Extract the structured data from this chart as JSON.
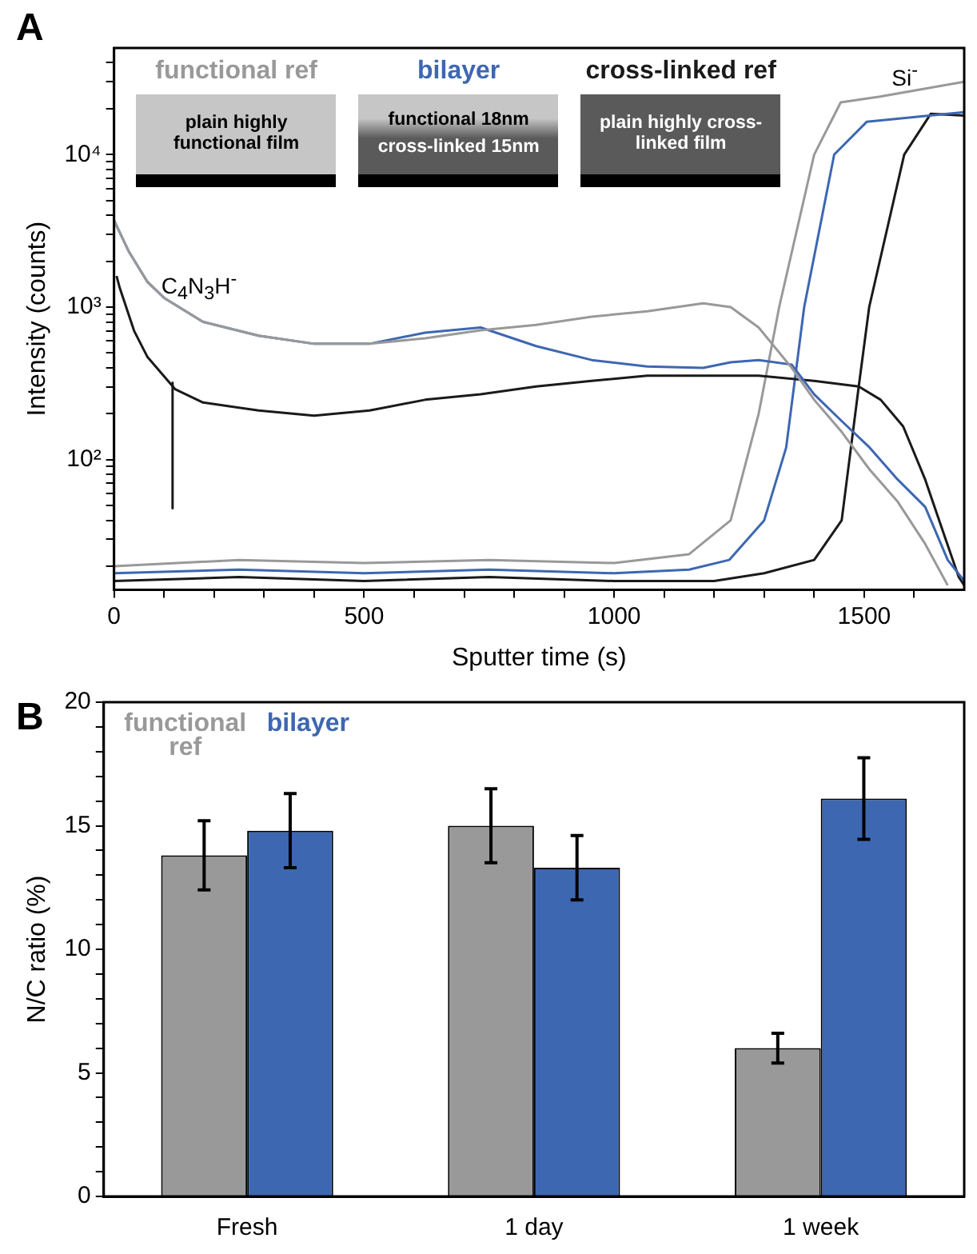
{
  "chart_data": [
    {
      "type": "line",
      "title": "A",
      "xlabel": "Sputter time (s)",
      "ylabel": "Intensity (counts)",
      "log": "y",
      "marker": "none",
      "legend": "top",
      "xlim": [
        0,
        1700
      ],
      "ylim": [
        14,
        50000
      ],
      "xticks": [
        0,
        {
          "value": 100,
          "label": null
        },
        {
          "value": 200,
          "label": null
        },
        {
          "value": 300,
          "label": null
        },
        {
          "value": 400,
          "label": null
        },
        500,
        {
          "value": 600,
          "label": null
        },
        {
          "value": 700,
          "label": null
        },
        {
          "value": 800,
          "label": null
        },
        {
          "value": 900,
          "label": null
        },
        1000,
        {
          "value": 1100,
          "label": null
        },
        {
          "value": 1200,
          "label": null
        },
        {
          "value": 1300,
          "label": null
        },
        {
          "value": 1400,
          "label": null
        },
        1500,
        {
          "value": 1600,
          "label": null
        }
      ],
      "yticks": [
        {
          "value": 20,
          "label": null
        },
        {
          "value": 30,
          "label": null
        },
        {
          "value": 40,
          "label": null
        },
        {
          "value": 50,
          "label": null
        },
        {
          "value": 60,
          "label": null
        },
        {
          "value": 70,
          "label": null
        },
        {
          "value": 80,
          "label": null
        },
        {
          "value": 90,
          "label": null
        },
        {
          "value": 100,
          "label": "10²"
        },
        {
          "value": 200,
          "label": null
        },
        {
          "value": 300,
          "label": null
        },
        {
          "value": 400,
          "label": null
        },
        {
          "value": 500,
          "label": null
        },
        {
          "value": 600,
          "label": null
        },
        {
          "value": 700,
          "label": null
        },
        {
          "value": 800,
          "label": null
        },
        {
          "value": 900,
          "label": null
        },
        {
          "value": 1000,
          "label": "10³"
        },
        {
          "value": 2000,
          "label": null
        },
        {
          "value": 3000,
          "label": null
        },
        {
          "value": 4000,
          "label": null
        },
        {
          "value": 5000,
          "label": null
        },
        {
          "value": 6000,
          "label": null
        },
        {
          "value": 7000,
          "label": null
        },
        {
          "value": 8000,
          "label": null
        },
        {
          "value": 9000,
          "label": null
        },
        {
          "value": 10000,
          "label": "10⁴"
        },
        {
          "value": 20000,
          "label": null
        },
        {
          "value": 30000,
          "label": null
        },
        {
          "value": 40000,
          "label": null
        }
      ],
      "annotations": [
        "C$_{4}$N$_{3}$H$^{-}$",
        "Si$^{-}$",
        "plain highly functional film",
        "functional 18nm",
        "cross-linked 15nm",
        "plain highly cross-linked film"
      ],
      "series": [
        {
          "name": "functional ref",
          "color": "#999999",
          "x": [
            0,
            30,
            67,
            100,
            178,
            289,
            400,
            511,
            622,
            733,
            844,
            955,
            1066,
            1178,
            1233,
            1289,
            1355,
            1400,
            1455,
            1511,
            1567,
            1622,
            1667
          ],
          "values": [
            3700,
            2300,
            1460,
            1150,
            800,
            650,
            575,
            575,
            625,
            705,
            765,
            865,
            940,
            1060,
            1000,
            735,
            400,
            247,
            152,
            86,
            53,
            28,
            15
          ]
        },
        {
          "name": "bilayer",
          "color": "#3d67b1",
          "x": [
            0,
            30,
            67,
            100,
            178,
            289,
            400,
            511,
            622,
            733,
            844,
            955,
            1066,
            1178,
            1233,
            1289,
            1355,
            1400,
            1455,
            1511,
            1567,
            1622,
            1667,
            1700
          ],
          "values": [
            3700,
            2300,
            1460,
            1150,
            800,
            650,
            575,
            575,
            680,
            735,
            555,
            450,
            408,
            400,
            435,
            450,
            420,
            268,
            179,
            120,
            74,
            49,
            22,
            16
          ]
        },
        {
          "name": "cross-linked ref",
          "color": "#1a1a1a",
          "x": [
            5,
            11,
            40,
            67,
            122,
            178,
            289,
            400,
            511,
            622,
            733,
            844,
            955,
            1066,
            1178,
            1289,
            1400,
            1489,
            1533,
            1578,
            1622,
            1656,
            1689,
            1700
          ],
          "values": [
            1600,
            1350,
            700,
            470,
            290,
            237,
            210,
            194,
            210,
            247,
            268,
            302,
            328,
            355,
            355,
            355,
            328,
            302,
            247,
            165,
            74,
            35,
            17,
            15
          ]
        },
        {
          "color": "#999999",
          "x": [
            0,
            250,
            500,
            750,
            1000,
            1150,
            1233,
            1289,
            1330,
            1400,
            1453,
            1532,
            1700
          ],
          "values": [
            20,
            22,
            21,
            22,
            21,
            24,
            40,
            200,
            1000,
            10000,
            22000,
            24000,
            30000
          ]
        },
        {
          "color": "#3d67b1",
          "x": [
            0,
            250,
            500,
            750,
            1000,
            1150,
            1230,
            1300,
            1344,
            1380,
            1440,
            1505,
            1700
          ],
          "values": [
            18,
            19,
            18,
            19,
            18,
            19,
            22,
            40,
            120,
            1000,
            10000,
            16400,
            19000
          ]
        },
        {
          "color": "#1a1a1a",
          "x": [
            0,
            250,
            500,
            750,
            1000,
            1200,
            1300,
            1400,
            1455,
            1489,
            1510,
            1580,
            1633,
            1700
          ],
          "values": [
            16,
            17,
            16,
            17,
            16,
            16,
            18,
            22,
            40,
            300,
            1000,
            10000,
            18500,
            18000
          ]
        },
        {
          "color": "#1a1a1a",
          "x": [
            117,
            117
          ],
          "values": [
            320,
            48
          ]
        }
      ]
    },
    {
      "type": "bar",
      "title": "B",
      "ylabel": "N/C ratio (%)",
      "legend": "top left",
      "categories": [
        "Fresh",
        "1 day",
        "1 week"
      ],
      "ylim": [
        0,
        20
      ],
      "yticks": [
        0,
        {
          "value": 1,
          "label": null
        },
        {
          "value": 2,
          "label": null
        },
        {
          "value": 3,
          "label": null
        },
        {
          "value": 4,
          "label": null
        },
        5,
        {
          "value": 6,
          "label": null
        },
        {
          "value": 7,
          "label": null
        },
        {
          "value": 8,
          "label": null
        },
        {
          "value": 9,
          "label": null
        },
        10,
        {
          "value": 11,
          "label": null
        },
        {
          "value": 12,
          "label": null
        },
        {
          "value": 13,
          "label": null
        },
        {
          "value": 14,
          "label": null
        },
        15,
        {
          "value": 16,
          "label": null
        },
        {
          "value": 17,
          "label": null
        },
        {
          "value": 18,
          "label": null
        },
        {
          "value": 19,
          "label": null
        },
        20
      ],
      "series": [
        {
          "name": "functional ref",
          "color": "#999999",
          "values": [
            13.8,
            15.0,
            6.0
          ],
          "errors": [
            1.4,
            1.5,
            0.6
          ]
        },
        {
          "name": "bilayer",
          "color": "#3d67b1",
          "values": [
            14.8,
            13.3,
            16.1
          ],
          "errors": [
            1.5,
            1.3,
            1.65
          ]
        }
      ]
    }
  ]
}
